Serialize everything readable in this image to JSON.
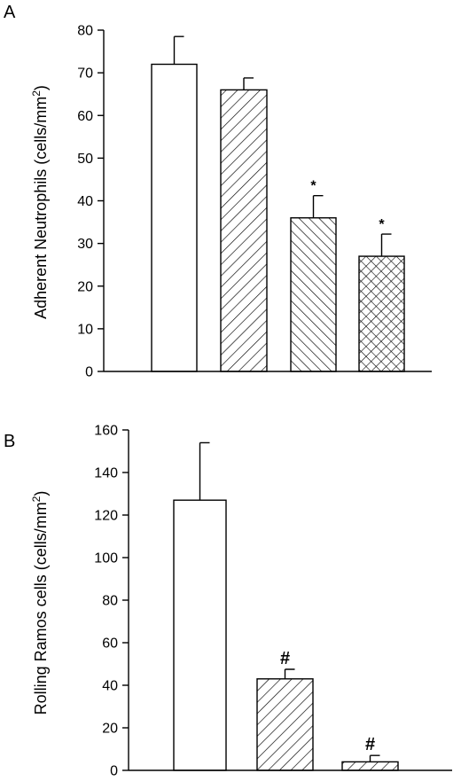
{
  "chart_data": [
    {
      "panel_label": "A",
      "type": "bar",
      "title": "",
      "xlabel": "",
      "ylabel_main": "Adherent Neutrophils (cells/mm",
      "ylabel_sup": "2",
      "ylabel_end": ")",
      "ylim": [
        0,
        80
      ],
      "yticks": [
        0,
        10,
        20,
        30,
        40,
        50,
        60,
        70,
        80
      ],
      "yticks_text": [
        "0",
        "10",
        "20",
        "30",
        "40",
        "50",
        "60",
        "70",
        "80"
      ],
      "values": [
        72,
        66,
        36,
        27
      ],
      "errors": [
        6.5,
        2.8,
        5.2,
        5.2
      ],
      "patterns": [
        "none",
        "diag-right",
        "diag-left",
        "crosshatch"
      ],
      "annotations": [
        "",
        "",
        "*",
        "*"
      ]
    },
    {
      "panel_label": "B",
      "type": "bar",
      "title": "",
      "xlabel": "",
      "ylabel_main": "Rolling Ramos cells (cells/mm",
      "ylabel_sup": "2",
      "ylabel_end": ")",
      "ylim": [
        0,
        160
      ],
      "yticks": [
        0,
        20,
        40,
        60,
        80,
        100,
        120,
        140,
        160
      ],
      "yticks_text": [
        "0",
        "20",
        "40",
        "60",
        "80",
        "100",
        "120",
        "140",
        "160"
      ],
      "values": [
        127,
        43,
        4
      ],
      "errors": [
        27,
        4.5,
        3
      ],
      "patterns": [
        "none",
        "diag-right",
        "diag-right"
      ],
      "annotations": [
        "",
        "#",
        "#"
      ]
    }
  ]
}
